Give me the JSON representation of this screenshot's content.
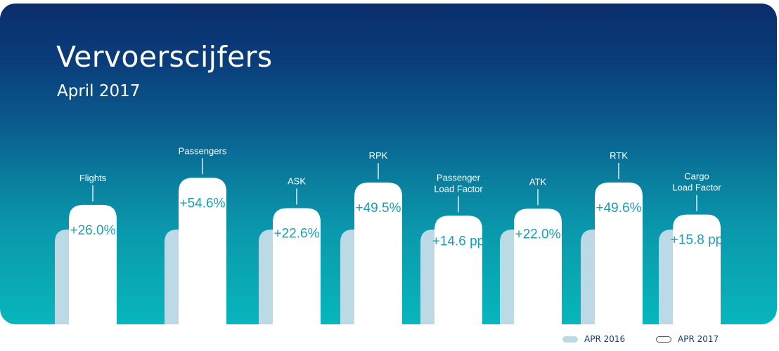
{
  "header": {
    "title": "Vervoerscijfers",
    "subtitle": "April 2017"
  },
  "legend": {
    "items": [
      {
        "label": "APR 2016",
        "color": "#bcd9e6"
      },
      {
        "label": "APR 2017",
        "color": "#ffffff"
      }
    ]
  },
  "colors": {
    "bar_2016": "#bcd9e6",
    "bar_2017": "#ffffff",
    "value_text": "#17a2b4",
    "label_text": "#ffffff"
  },
  "chart_data": {
    "type": "bar",
    "title": "Vervoerscijfers",
    "subtitle": "April 2017",
    "categories": [
      "Flights",
      "Passengers",
      "ASK",
      "RPK",
      "Passenger\nLoad Factor",
      "ATK",
      "RTK",
      "Cargo\nLoad Factor"
    ],
    "series": [
      {
        "name": "APR 2016",
        "values": [
          100,
          100,
          100,
          100,
          100,
          100,
          100,
          100
        ]
      },
      {
        "name": "APR 2017",
        "values": [
          126.0,
          154.6,
          122.6,
          149.5,
          114.6,
          122.0,
          149.6,
          115.8
        ]
      }
    ],
    "value_labels": [
      "+26.0%",
      "+54.6%",
      "+22.6%",
      "+49.5%",
      "+14.6 pp",
      "+22.0%",
      "+49.6%",
      "+15.8 pp"
    ],
    "grid": false,
    "legend_position": "bottom-right"
  }
}
